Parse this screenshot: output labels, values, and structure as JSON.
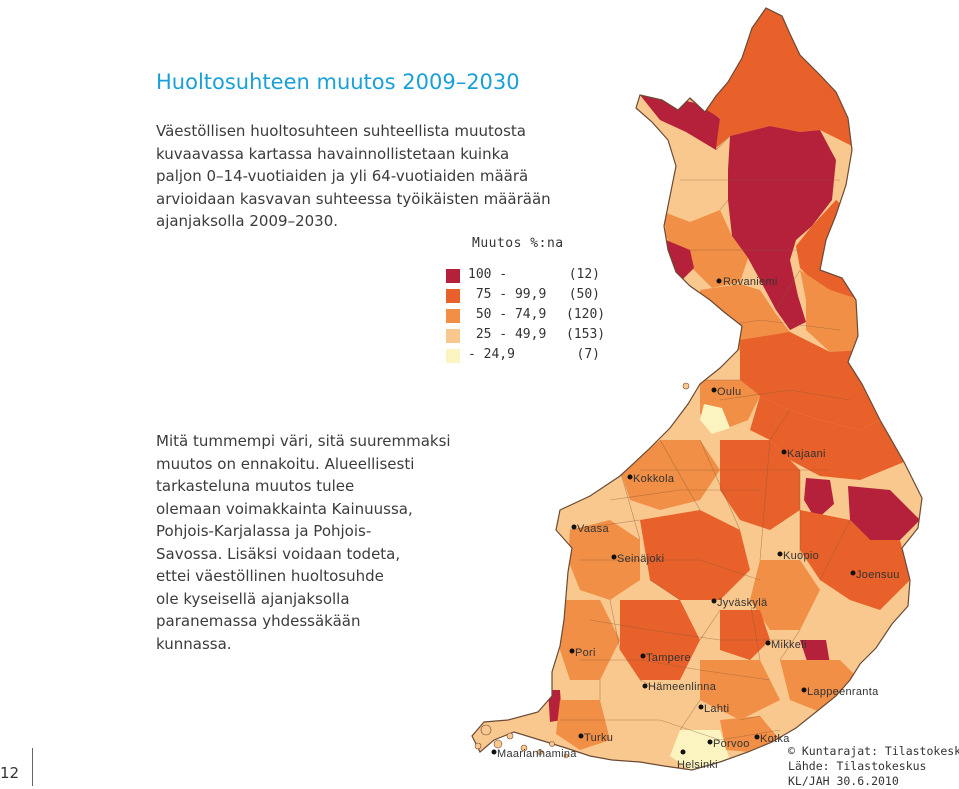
{
  "title": "Huoltosuhteen muutos 2009–2030",
  "intro_lines": [
    "Väestöllisen huoltosuhteen suhteellista muutosta",
    "kuvaavassa kartassa havainnollistetaan kuinka",
    "paljon 0–14-vuotiaiden ja yli 64-vuotiaiden määrä",
    "arvioidaan kasvavan suhteessa työikäisten määrään",
    "ajanjaksolla 2009–2030."
  ],
  "note_lines": [
    "Mitä tummempi väri, sitä suuremmaksi",
    "muutos on ennakoitu. Alueellisesti",
    "tarkasteluna muutos tulee",
    "olemaan voimakkainta Kainuussa,",
    "Pohjois-Karjalassa ja Pohjois-",
    "Savossa. Lisäksi voidaan todeta,",
    "ettei väestöllinen huoltosuhde",
    "ole kyseisellä ajanjaksolla",
    "paranemassa yhdessäkään",
    "kunnassa."
  ],
  "legend": {
    "title": "Muutos %:na",
    "classes": [
      {
        "range": "100 -",
        "count": "(12)",
        "color": "#b5213a"
      },
      {
        "range": " 75 - 99,9",
        "count": "(50)",
        "color": "#e8602a"
      },
      {
        "range": " 50 - 74,9",
        "count": "(120)",
        "color": "#f08f45"
      },
      {
        "range": " 25 - 49,9",
        "count": "(153)",
        "color": "#f9c88e"
      },
      {
        "range": "- 24,9",
        "count": "(7)",
        "color": "#fbf3c0"
      }
    ]
  },
  "cities": [
    {
      "name": "Rovaniemi"
    },
    {
      "name": "Oulu"
    },
    {
      "name": "Kajaani"
    },
    {
      "name": "Kokkola"
    },
    {
      "name": "Vaasa"
    },
    {
      "name": "Seinäjoki"
    },
    {
      "name": "Kuopio"
    },
    {
      "name": "Joensuu"
    },
    {
      "name": "Jyväskylä"
    },
    {
      "name": "Mikkeli"
    },
    {
      "name": "Pori"
    },
    {
      "name": "Tampere"
    },
    {
      "name": "Hämeenlinna"
    },
    {
      "name": "Lappeenranta"
    },
    {
      "name": "Lahti"
    },
    {
      "name": "Turku"
    },
    {
      "name": "Porvoo"
    },
    {
      "name": "Kotka"
    },
    {
      "name": "Maarianhamina"
    },
    {
      "name": "Helsinki"
    }
  ],
  "credits": [
    "© Kuntarajat: Tilastokeskus",
    "Lähde: Tilastokeskus",
    "KL/JAH 30.6.2010"
  ],
  "page_number": "12"
}
